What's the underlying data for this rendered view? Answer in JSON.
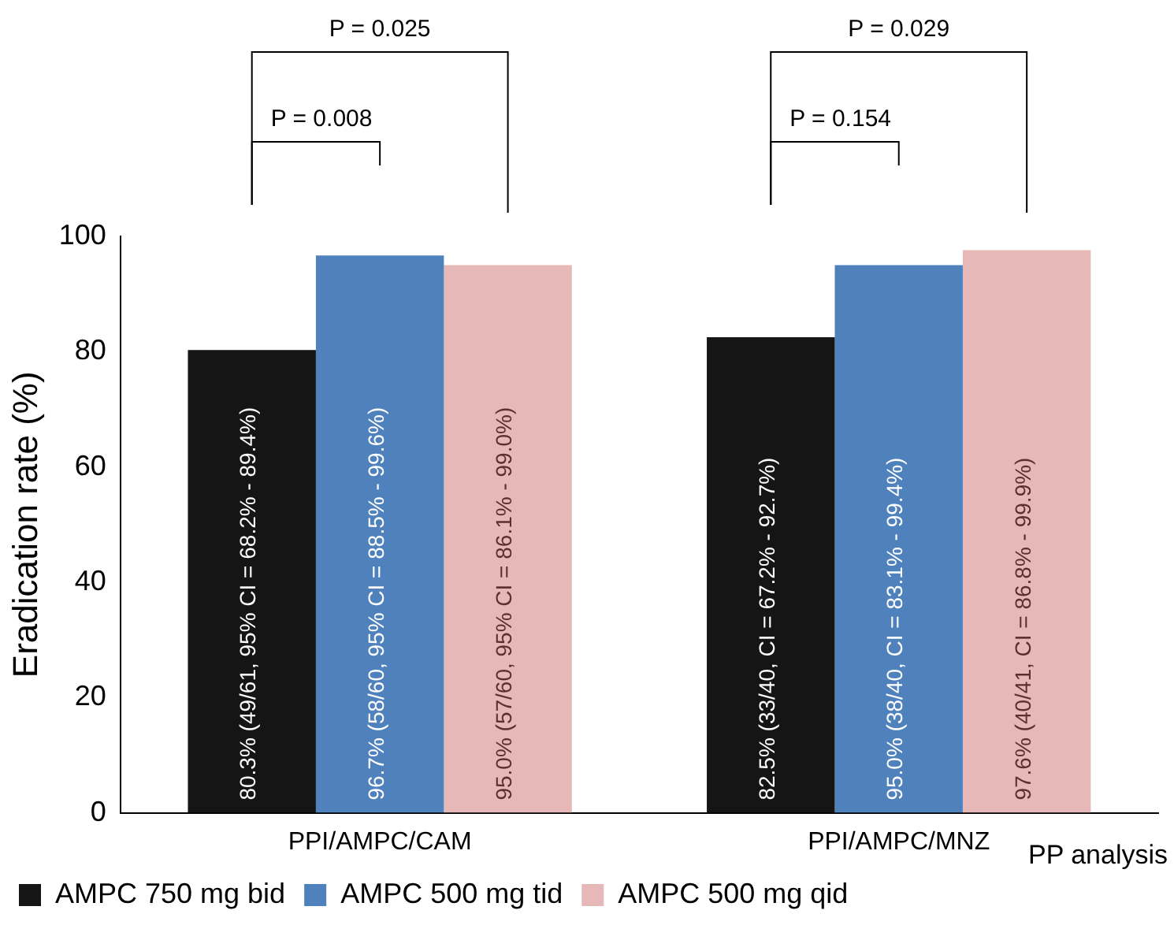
{
  "chart_data": {
    "type": "bar",
    "ylabel": "Eradication rate (%)",
    "categories": [
      "PPI/AMPC/CAM",
      "PPI/AMPC/MNZ"
    ],
    "series": [
      {
        "name": "AMPC 750 mg bid",
        "color": "#151515",
        "values": [
          80.3,
          82.5
        ],
        "value_labels": [
          "80.3% (49/61, 95% CI = 68.2% - 89.4%)",
          "82.5% (33/40, CI = 67.2% - 92.7%)"
        ]
      },
      {
        "name": "AMPC 500 mg tid",
        "color": "#4f81bd",
        "values": [
          96.7,
          95.0
        ],
        "value_labels": [
          "96.7% (58/60, 95% CI = 88.5% - 99.6%)",
          "95.0% (38/40, CI = 83.1% - 99.4%)"
        ]
      },
      {
        "name": "AMPC 500 mg qid",
        "color": "#e6b9b8",
        "values": [
          95.0,
          97.6
        ],
        "value_labels": [
          "95.0% (57/60, 95% CI = 86.1% - 99.0%)",
          "97.6% (40/41, CI = 86.8% - 99.9%)"
        ]
      }
    ],
    "ylim": [
      0,
      100
    ],
    "yticks": [
      0,
      20,
      40,
      60,
      80,
      100
    ],
    "grid": false,
    "legend": "bottom",
    "annotations": [
      "P = 0.008",
      "P = 0.025",
      "P = 0.154",
      "P = 0.029",
      "PP analysis"
    ]
  }
}
